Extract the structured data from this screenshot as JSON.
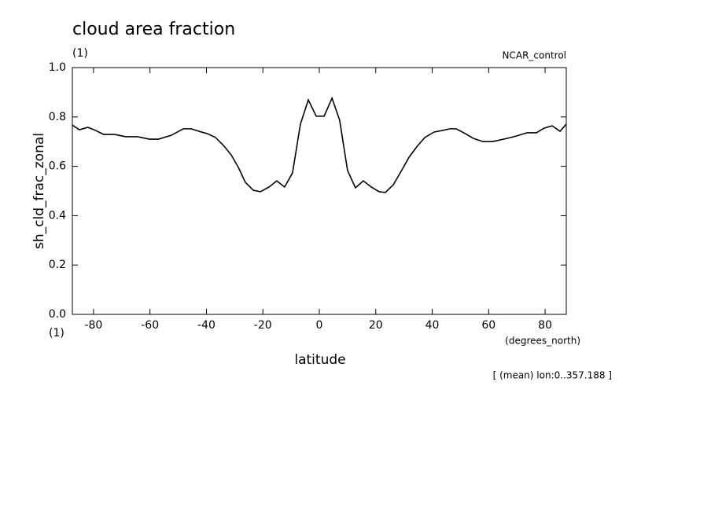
{
  "chart_data": {
    "type": "line",
    "title": "cloud area fraction",
    "title_units": "(1)",
    "dataset": "NCAR_control",
    "y_label": "sh_cld_frac_zonal",
    "y_units": "(1)",
    "x_label": "latitude",
    "x_units": "(degrees_north)",
    "note": "[ (mean) lon:0..357.188 ]",
    "x": [
      -87.5,
      -85.0,
      -82.0,
      -79.2,
      -76.4,
      -72.5,
      -68.6,
      -64.4,
      -60.2,
      -56.9,
      -52.4,
      -48.2,
      -45.4,
      -41.8,
      -39.6,
      -36.8,
      -34.0,
      -31.2,
      -28.7,
      -26.2,
      -23.4,
      -20.9,
      -17.8,
      -15.1,
      -12.3,
      -9.5,
      -6.7,
      -3.9,
      -1.1,
      1.7,
      4.5,
      7.2,
      10.0,
      12.8,
      15.6,
      18.4,
      21.2,
      23.4,
      26.2,
      29.0,
      31.8,
      34.6,
      37.4,
      40.7,
      43.5,
      46.3,
      48.5,
      51.8,
      54.6,
      58.0,
      61.3,
      64.1,
      68.0,
      70.8,
      73.6,
      76.9,
      79.7,
      82.5,
      85.3,
      87.5
    ],
    "series": [
      {
        "color": "#000000",
        "values": [
          0.767,
          0.748,
          0.758,
          0.745,
          0.729,
          0.729,
          0.72,
          0.72,
          0.71,
          0.71,
          0.726,
          0.752,
          0.752,
          0.739,
          0.732,
          0.717,
          0.685,
          0.646,
          0.596,
          0.535,
          0.503,
          0.497,
          0.516,
          0.541,
          0.516,
          0.573,
          0.771,
          0.869,
          0.803,
          0.803,
          0.876,
          0.787,
          0.583,
          0.513,
          0.541,
          0.516,
          0.497,
          0.494,
          0.525,
          0.58,
          0.637,
          0.68,
          0.717,
          0.739,
          0.745,
          0.752,
          0.752,
          0.732,
          0.713,
          0.7,
          0.7,
          0.707,
          0.717,
          0.726,
          0.736,
          0.736,
          0.755,
          0.764,
          0.742,
          0.771
        ]
      }
    ],
    "xlim": [
      -87.5,
      87.5
    ],
    "ylim": [
      0,
      1
    ],
    "xticks": [
      -80,
      -60,
      -40,
      -20,
      0,
      20,
      40,
      60,
      80
    ],
    "yticks": [
      {
        "value": 0,
        "label": "0.0"
      },
      {
        "value": 0.2,
        "label": "0.2"
      },
      {
        "value": 0.4,
        "label": "0.4"
      },
      {
        "value": 0.6,
        "label": "0.6"
      },
      {
        "value": 0.8,
        "label": "0.8"
      },
      {
        "value": 1,
        "label": "1.0"
      }
    ]
  }
}
